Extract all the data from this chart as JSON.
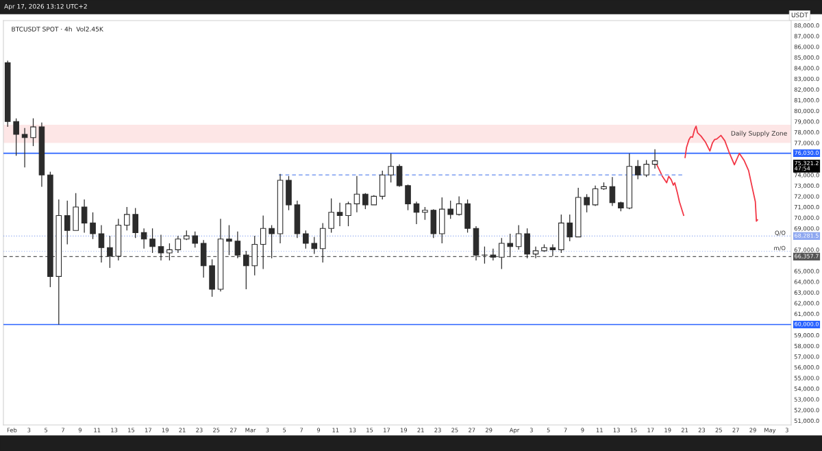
{
  "chart_data": {
    "type": "candlestick",
    "title": "BTCUSDT SPOT · 4h  Vol2.45K",
    "ylabel": "USDT",
    "color": "#2b2b2b",
    "x": [
      "2026-01-31T12:00",
      "2026-02-01T12:00",
      "2026-02-02T12:00",
      "2026-02-03T12:00",
      "2026-02-04T12:00",
      "2026-02-05T12:00",
      "2026-02-06T12:00",
      "2026-02-07T12:00",
      "2026-02-08T12:00",
      "2026-02-09T12:00",
      "2026-02-10T12:00",
      "2026-02-11T12:00",
      "2026-02-12T12:00",
      "2026-02-13T12:00",
      "2026-02-14T12:00",
      "2026-02-15T12:00",
      "2026-02-16T12:00",
      "2026-02-17T12:00",
      "2026-02-18T12:00",
      "2026-02-19T12:00",
      "2026-02-20T12:00",
      "2026-02-21T12:00",
      "2026-02-22T12:00",
      "2026-02-23T12:00",
      "2026-02-24T12:00",
      "2026-02-25T12:00",
      "2026-02-26T12:00",
      "2026-02-27T12:00",
      "2026-02-28T12:00",
      "2026-03-01T12:00",
      "2026-03-02T12:00",
      "2026-03-03T12:00",
      "2026-03-04T12:00",
      "2026-03-05T12:00",
      "2026-03-06T12:00",
      "2026-03-07T12:00",
      "2026-03-08T12:00",
      "2026-03-09T12:00",
      "2026-03-10T12:00",
      "2026-03-11T12:00",
      "2026-03-12T12:00",
      "2026-03-13T12:00",
      "2026-03-14T12:00",
      "2026-03-15T12:00",
      "2026-03-16T12:00",
      "2026-03-17T12:00",
      "2026-03-18T12:00",
      "2026-03-19T12:00",
      "2026-03-20T12:00",
      "2026-03-21T12:00",
      "2026-03-22T12:00",
      "2026-03-23T12:00",
      "2026-03-24T12:00",
      "2026-03-25T12:00",
      "2026-03-26T12:00",
      "2026-03-27T12:00",
      "2026-03-28T12:00",
      "2026-03-29T12:00",
      "2026-03-30T12:00",
      "2026-03-31T12:00",
      "2026-04-01T12:00",
      "2026-04-02T12:00",
      "2026-04-03T12:00",
      "2026-04-04T12:00",
      "2026-04-05T12:00",
      "2026-04-06T12:00",
      "2026-04-07T12:00",
      "2026-04-08T12:00",
      "2026-04-09T12:00",
      "2026-04-10T12:00",
      "2026-04-11T12:00",
      "2026-04-12T12:00",
      "2026-04-13T12:00",
      "2026-04-14T12:00",
      "2026-04-15T12:00",
      "2026-04-16T12:00",
      "2026-04-17T12:00"
    ],
    "ohlc": [
      [
        84500,
        84700,
        78500,
        79000
      ],
      [
        79000,
        79300,
        75800,
        77800
      ],
      [
        77800,
        78400,
        74700,
        77500
      ],
      [
        77500,
        79300,
        76700,
        78500
      ],
      [
        78500,
        78900,
        72900,
        74000
      ],
      [
        74000,
        74300,
        63500,
        64500
      ],
      [
        64500,
        71700,
        60000,
        70200
      ],
      [
        70200,
        71600,
        67500,
        68800
      ],
      [
        68800,
        72300,
        68800,
        71000
      ],
      [
        71000,
        71700,
        68600,
        69500
      ],
      [
        69500,
        70500,
        68000,
        68500
      ],
      [
        68500,
        69300,
        65800,
        67200
      ],
      [
        67200,
        68300,
        65300,
        66400
      ],
      [
        66400,
        69900,
        66000,
        69300
      ],
      [
        69300,
        71000,
        68800,
        70300
      ],
      [
        70300,
        70900,
        68100,
        68600
      ],
      [
        68600,
        69000,
        67100,
        68000
      ],
      [
        68000,
        69000,
        66700,
        67300
      ],
      [
        67300,
        68400,
        66000,
        66700
      ],
      [
        66700,
        67600,
        66000,
        67000
      ],
      [
        67000,
        68300,
        66700,
        68000
      ],
      [
        68000,
        68800,
        67900,
        68300
      ],
      [
        68300,
        68700,
        67200,
        67600
      ],
      [
        67600,
        67900,
        64400,
        65500
      ],
      [
        65500,
        66100,
        62600,
        63300
      ],
      [
        63300,
        69900,
        63100,
        68000
      ],
      [
        68000,
        69300,
        66500,
        67800
      ],
      [
        67800,
        68700,
        66200,
        66500
      ],
      [
        66500,
        66900,
        63300,
        65500
      ],
      [
        65500,
        68300,
        64600,
        67500
      ],
      [
        67500,
        70200,
        65200,
        69000
      ],
      [
        69000,
        69300,
        66200,
        68500
      ],
      [
        68500,
        74100,
        67600,
        73500
      ],
      [
        73500,
        73900,
        70700,
        71200
      ],
      [
        71200,
        71600,
        68100,
        68500
      ],
      [
        68500,
        68800,
        67100,
        67600
      ],
      [
        67600,
        68200,
        66600,
        67100
      ],
      [
        67100,
        69500,
        65800,
        69000
      ],
      [
        69000,
        71800,
        68600,
        70500
      ],
      [
        70500,
        71400,
        69200,
        70200
      ],
      [
        70200,
        71500,
        69200,
        71300
      ],
      [
        71300,
        73900,
        70500,
        72200
      ],
      [
        72200,
        72300,
        70800,
        71200
      ],
      [
        71200,
        72100,
        71200,
        72000
      ],
      [
        72000,
        74400,
        71700,
        74000
      ],
      [
        74000,
        76000,
        73300,
        74800
      ],
      [
        74800,
        75000,
        72900,
        73000
      ],
      [
        73000,
        73100,
        70700,
        71300
      ],
      [
        71300,
        71500,
        69400,
        70500
      ],
      [
        70500,
        71000,
        69800,
        70700
      ],
      [
        70700,
        70800,
        68100,
        68500
      ],
      [
        68500,
        71900,
        67600,
        70800
      ],
      [
        70800,
        71600,
        69900,
        70300
      ],
      [
        70300,
        72000,
        70200,
        71300
      ],
      [
        71300,
        71700,
        68600,
        69000
      ],
      [
        69000,
        69200,
        66000,
        66500
      ],
      [
        66500,
        67300,
        65700,
        66500
      ],
      [
        66500,
        67100,
        66000,
        66300
      ],
      [
        66300,
        68100,
        65200,
        67600
      ],
      [
        67600,
        68500,
        66300,
        67300
      ],
      [
        67300,
        69300,
        67000,
        68500
      ],
      [
        68500,
        69000,
        66200,
        66600
      ],
      [
        66600,
        67300,
        66200,
        66900
      ],
      [
        66900,
        67500,
        66800,
        67200
      ],
      [
        67200,
        67500,
        66400,
        67000
      ],
      [
        67000,
        70300,
        66700,
        69500
      ],
      [
        69500,
        70300,
        67800,
        68200
      ],
      [
        68200,
        72800,
        68200,
        71900
      ],
      [
        71900,
        72200,
        70500,
        71200
      ],
      [
        71200,
        73000,
        71100,
        72700
      ],
      [
        72700,
        73300,
        72600,
        72900
      ],
      [
        72900,
        73800,
        71100,
        71400
      ],
      [
        71400,
        71500,
        70600,
        70900
      ],
      [
        70900,
        76000,
        70800,
        74800
      ],
      [
        74800,
        75400,
        73600,
        74000
      ],
      [
        74000,
        75400,
        73800,
        75000
      ],
      [
        75000,
        76400,
        74600,
        75321.2
      ]
    ],
    "series": [
      {
        "type": "line",
        "color": "#f23645",
        "x": [
          "2026-04-17T16:00",
          "2026-04-18T03:00",
          "2026-04-18T09:00",
          "2026-04-18T21:00",
          "2026-04-19T03:00",
          "2026-04-19T10:00",
          "2026-04-19T16:00",
          "2026-04-19T20:00",
          "2026-04-20T03:00",
          "2026-04-20T09:00",
          "2026-04-20T21:00"
        ],
        "values": [
          75050,
          74300,
          73870,
          73270,
          73870,
          73550,
          73050,
          73270,
          72370,
          71500,
          70220
        ]
      },
      {
        "type": "line",
        "color": "#f23645",
        "x": [
          "2026-04-21T01:00",
          "2026-04-21T05:00",
          "2026-04-21T12:00",
          "2026-04-21T17:00",
          "2026-04-21T22:00",
          "2026-04-22T04:00",
          "2026-04-22T08:00",
          "2026-04-22T12:00",
          "2026-04-22T22:00",
          "2026-04-23T10:00",
          "2026-04-23T23:00",
          "2026-04-24T06:00",
          "2026-04-24T12:00",
          "2026-04-24T18:00",
          "2026-04-25T06:00",
          "2026-04-25T17:00",
          "2026-04-26T05:00",
          "2026-04-26T20:00",
          "2026-04-27T10:00",
          "2026-04-27T23:00",
          "2026-04-28T12:00",
          "2026-04-28T21:00",
          "2026-04-29T07:00",
          "2026-04-29T10:00",
          "2026-04-29T13:00"
        ],
        "values": [
          75630,
          76560,
          77310,
          77570,
          77530,
          78280,
          78560,
          77960,
          77630,
          77100,
          76240,
          76990,
          77310,
          77360,
          77700,
          77200,
          76130,
          74950,
          76020,
          75380,
          74410,
          73010,
          71500,
          69680,
          69790
        ]
      },
      {
        "type": "line",
        "color": "#7b9cf0",
        "line_style": "dashed",
        "x": [
          "2026-03-04T08:00",
          "2026-04-20T18:00"
        ],
        "values": [
          74000,
          74000
        ]
      }
    ],
    "ref_lines": [
      {
        "axis": "y",
        "value": 76030,
        "color": "#2962ff",
        "line_style": "solid"
      },
      {
        "axis": "y",
        "value": 60000,
        "color": "#2962ff",
        "line_style": "solid"
      },
      {
        "axis": "y",
        "value": 68281.5,
        "label": "Q/O",
        "color": "#8fa8f0",
        "line_style": "dotted"
      },
      {
        "axis": "y",
        "value": 66850,
        "label": "m/O",
        "color": "#b0c2f2",
        "line_style": "dotted"
      },
      {
        "axis": "y",
        "value": 66357.7,
        "color": "#555555",
        "line_style": "dashed"
      }
    ],
    "bands": [
      {
        "axis": "y",
        "from": 77000,
        "to": 78700,
        "label": "Daily Supply Zone",
        "color": "#fde6e6"
      }
    ],
    "annotations": [
      "Apr 17, 2026 13:12 UTC+2",
      {
        "text": "76,030.0",
        "x": "2026-05-03T12:00",
        "y": 76030
      },
      "75,321.2\n47:54",
      {
        "text": "68,281.5",
        "x": "2026-05-03T12:00",
        "y": 68281.5
      },
      {
        "text": "66,357.7",
        "x": "2026-05-03T12:00",
        "y": 66357.7
      },
      {
        "text": "60,000.0",
        "x": "2026-05-03T12:00",
        "y": 60000
      }
    ],
    "xlim": [
      "2026-01-31T00:00",
      "2026-05-03T12:00"
    ],
    "xticks": [
      {
        "value": "2026-02-01",
        "label": "Feb"
      },
      {
        "value": "2026-02-03",
        "label": "3"
      },
      {
        "value": "2026-02-05",
        "label": "5"
      },
      {
        "value": "2026-02-07",
        "label": "7"
      },
      {
        "value": "2026-02-09",
        "label": "9"
      },
      {
        "value": "2026-02-11",
        "label": "11"
      },
      {
        "value": "2026-02-13",
        "label": "13"
      },
      {
        "value": "2026-02-15",
        "label": "15"
      },
      {
        "value": "2026-02-17",
        "label": "17"
      },
      {
        "value": "2026-02-19",
        "label": "19"
      },
      {
        "value": "2026-02-21",
        "label": "21"
      },
      {
        "value": "2026-02-23",
        "label": "23"
      },
      {
        "value": "2026-02-25",
        "label": "25"
      },
      {
        "value": "2026-02-27",
        "label": "27"
      },
      {
        "value": "2026-03-01",
        "label": "Mar"
      },
      {
        "value": "2026-03-03",
        "label": "3"
      },
      {
        "value": "2026-03-05",
        "label": "5"
      },
      {
        "value": "2026-03-07",
        "label": "7"
      },
      {
        "value": "2026-03-09",
        "label": "9"
      },
      {
        "value": "2026-03-11",
        "label": "11"
      },
      {
        "value": "2026-03-13",
        "label": "13"
      },
      {
        "value": "2026-03-15",
        "label": "15"
      },
      {
        "value": "2026-03-17",
        "label": "17"
      },
      {
        "value": "2026-03-19",
        "label": "19"
      },
      {
        "value": "2026-03-21",
        "label": "21"
      },
      {
        "value": "2026-03-23",
        "label": "23"
      },
      {
        "value": "2026-03-25",
        "label": "25"
      },
      {
        "value": "2026-03-27",
        "label": "27"
      },
      {
        "value": "2026-03-29",
        "label": "29"
      },
      {
        "value": "2026-04-01",
        "label": "Apr"
      },
      {
        "value": "2026-04-03",
        "label": "3"
      },
      {
        "value": "2026-04-05",
        "label": "5"
      },
      {
        "value": "2026-04-07",
        "label": "7"
      },
      {
        "value": "2026-04-09",
        "label": "9"
      },
      {
        "value": "2026-04-11",
        "label": "11"
      },
      {
        "value": "2026-04-13",
        "label": "13"
      },
      {
        "value": "2026-04-15",
        "label": "15"
      },
      {
        "value": "2026-04-17",
        "label": "17"
      },
      {
        "value": "2026-04-19",
        "label": "19"
      },
      {
        "value": "2026-04-21",
        "label": "21"
      },
      {
        "value": "2026-04-23",
        "label": "23"
      },
      {
        "value": "2026-04-25",
        "label": "25"
      },
      {
        "value": "2026-04-27",
        "label": "27"
      },
      {
        "value": "2026-04-29",
        "label": "29"
      },
      {
        "value": "2026-05-01",
        "label": "May"
      },
      {
        "value": "2026-05-03",
        "label": "3"
      }
    ],
    "ylim": [
      50600,
      88450
    ],
    "yticks": [
      {
        "value": 51000,
        "label": "51,000.0"
      },
      {
        "value": 52000,
        "label": "52,000.0"
      },
      {
        "value": 53000,
        "label": "53,000.0"
      },
      {
        "value": 54000,
        "label": "54,000.0"
      },
      {
        "value": 55000,
        "label": "55,000.0"
      },
      {
        "value": 56000,
        "label": "56,000.0"
      },
      {
        "value": 57000,
        "label": "57,000.0"
      },
      {
        "value": 58000,
        "label": "58,000.0"
      },
      {
        "value": 59000,
        "label": "59,000.0"
      },
      {
        "value": 61000,
        "label": "61,000.0"
      },
      {
        "value": 62000,
        "label": "62,000.0"
      },
      {
        "value": 63000,
        "label": "63,000.0"
      },
      {
        "value": 64000,
        "label": "64,000.0"
      },
      {
        "value": 65000,
        "label": "65,000.0"
      },
      {
        "value": 67000,
        "label": "67,000.0"
      },
      {
        "value": 69000,
        "label": "69,000.0"
      },
      {
        "value": 70000,
        "label": "70,000.0"
      },
      {
        "value": 71000,
        "label": "71,000.0"
      },
      {
        "value": 72000,
        "label": "72,000.0"
      },
      {
        "value": 73000,
        "label": "73,000.0"
      },
      {
        "value": 74000,
        "label": "74,000.0"
      },
      {
        "value": 77000,
        "label": "77,000.0"
      },
      {
        "value": 78000,
        "label": "78,000.0"
      },
      {
        "value": 79000,
        "label": "79,000.0"
      },
      {
        "value": 80000,
        "label": "80,000.0"
      },
      {
        "value": 81000,
        "label": "81,000.0"
      },
      {
        "value": 82000,
        "label": "82,000.0"
      },
      {
        "value": 83000,
        "label": "83,000.0"
      },
      {
        "value": 84000,
        "label": "84,000.0"
      },
      {
        "value": 85000,
        "label": "85,000.0"
      },
      {
        "value": 86000,
        "label": "86,000.0"
      },
      {
        "value": 87000,
        "label": "87,000.0"
      },
      {
        "value": 88000,
        "label": "88,000.0"
      }
    ],
    "grid": false,
    "legend": false
  }
}
